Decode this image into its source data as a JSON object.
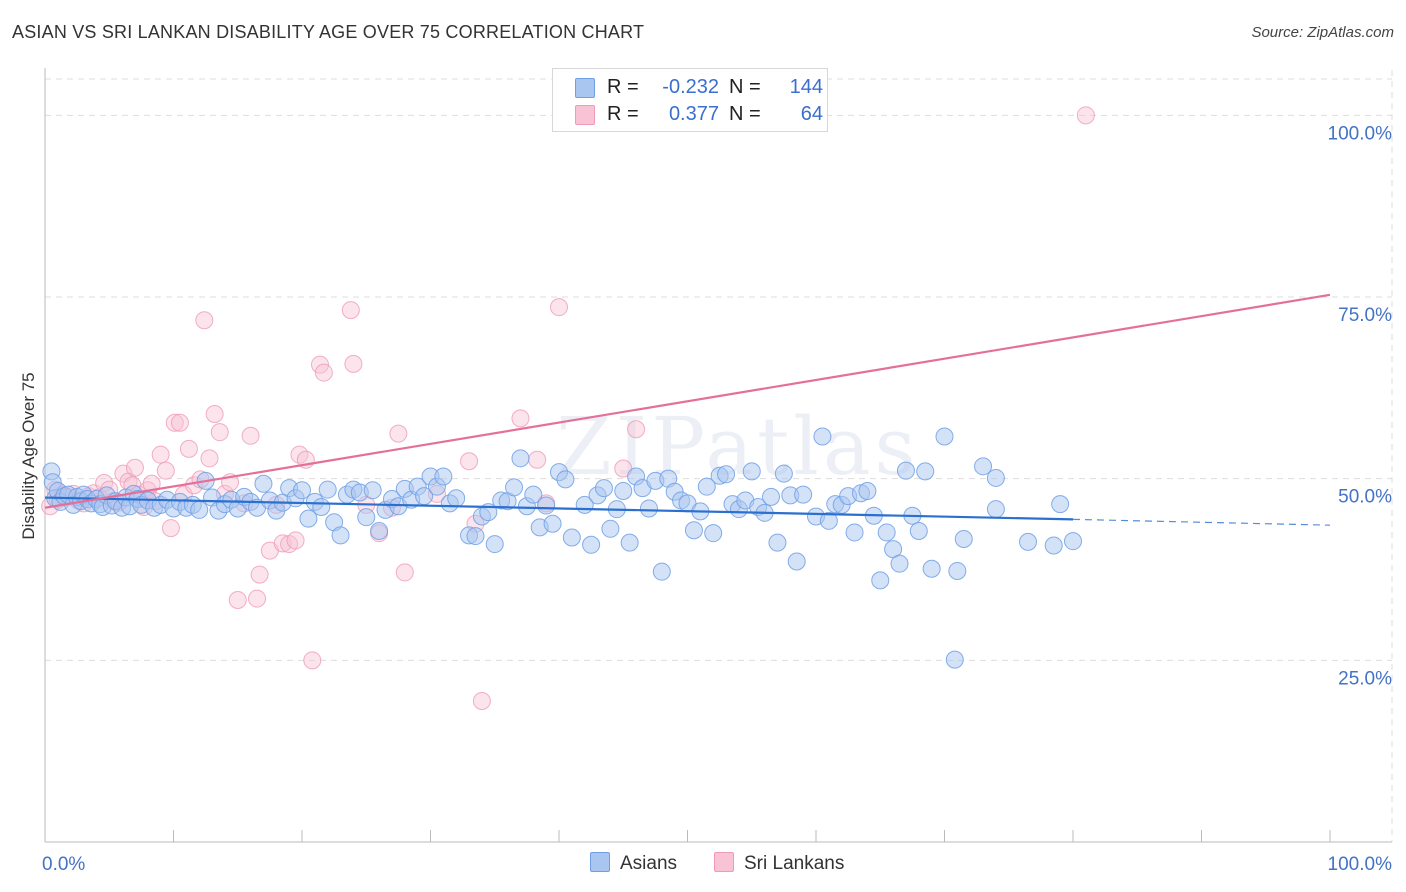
{
  "title": "ASIAN VS SRI LANKAN DISABILITY AGE OVER 75 CORRELATION CHART",
  "source": "Source: ZipAtlas.com",
  "watermark": "ZIPatlas",
  "colors": {
    "asians": "#6fa0e6",
    "asians_fill": "#a9c6f0",
    "asians_line": "#2b6fcf",
    "srilankans": "#f09ab8",
    "srilankans_fill": "#f7c3d5",
    "srilankans_line": "#e4709a",
    "grid": "#dddddd",
    "tick": "#4472c4"
  },
  "legend": {
    "rows": [
      {
        "label": "R =",
        "r": "-0.232",
        "n_label": "N =",
        "n": "144",
        "series": "asians"
      },
      {
        "label": "R =",
        "r": "0.377",
        "n_label": "N =",
        "n": "64",
        "series": "srilankans"
      }
    ]
  },
  "bottom_legend": [
    {
      "label": "Asians",
      "series": "asians"
    },
    {
      "label": "Sri Lankans",
      "series": "srilankans"
    }
  ],
  "chart_data": {
    "type": "scatter",
    "title": "ASIAN VS SRI LANKAN DISABILITY AGE OVER 75 CORRELATION CHART",
    "xlabel": "",
    "ylabel": "Disability Age Over 75",
    "xlim": [
      0,
      100
    ],
    "ylim": [
      0,
      105
    ],
    "x_ticks": [
      "0.0%",
      "100.0%"
    ],
    "y_ticks": [
      {
        "value": 25,
        "label": "25.0%"
      },
      {
        "value": 50,
        "label": "50.0%"
      },
      {
        "value": 75,
        "label": "75.0%"
      },
      {
        "value": 100,
        "label": "100.0%"
      }
    ],
    "grid": "horizontal dashed",
    "legend_position": "top-center",
    "series": [
      {
        "name": "Asians",
        "r": -0.232,
        "n": 144,
        "trend": {
          "x": [
            0,
            80,
            100
          ],
          "y": [
            47.4,
            44.4,
            43.6
          ],
          "solid_until": 80
        },
        "points": [
          [
            0.5,
            51
          ],
          [
            0.6,
            49.5
          ],
          [
            0.8,
            47.3
          ],
          [
            1.0,
            48.3
          ],
          [
            1.2,
            46.8
          ],
          [
            1.5,
            47.6
          ],
          [
            1.8,
            47.8
          ],
          [
            2.2,
            46.4
          ],
          [
            2.5,
            47.5
          ],
          [
            2.8,
            46.9
          ],
          [
            3.0,
            47.8
          ],
          [
            3.3,
            47.2
          ],
          [
            3.6,
            46.6
          ],
          [
            4.0,
            47.2
          ],
          [
            4.3,
            46.5
          ],
          [
            4.5,
            46.1
          ],
          [
            4.8,
            47.7
          ],
          [
            5.2,
            46.3
          ],
          [
            5.5,
            46.9
          ],
          [
            6.0,
            46.0
          ],
          [
            6.3,
            47.4
          ],
          [
            6.6,
            46.2
          ],
          [
            6.9,
            47.9
          ],
          [
            7.2,
            47.2
          ],
          [
            7.5,
            46.4
          ],
          [
            8.0,
            47.0
          ],
          [
            8.5,
            46.0
          ],
          [
            9.0,
            46.4
          ],
          [
            9.5,
            47.1
          ],
          [
            10.0,
            45.9
          ],
          [
            10.5,
            46.8
          ],
          [
            11.0,
            46.0
          ],
          [
            11.5,
            46.4
          ],
          [
            12.0,
            45.7
          ],
          [
            12.5,
            49.7
          ],
          [
            13.0,
            47.4
          ],
          [
            13.5,
            45.6
          ],
          [
            14.0,
            46.5
          ],
          [
            14.5,
            47.1
          ],
          [
            15.0,
            45.9
          ],
          [
            15.5,
            47.5
          ],
          [
            16.0,
            46.8
          ],
          [
            16.5,
            46.0
          ],
          [
            17.0,
            49.3
          ],
          [
            17.5,
            47.0
          ],
          [
            18.0,
            45.6
          ],
          [
            18.5,
            46.7
          ],
          [
            19.0,
            48.7
          ],
          [
            19.5,
            47.3
          ],
          [
            20.0,
            48.4
          ],
          [
            20.5,
            44.5
          ],
          [
            21.0,
            46.8
          ],
          [
            21.5,
            46.1
          ],
          [
            22.0,
            48.5
          ],
          [
            22.5,
            44.0
          ],
          [
            23.0,
            42.2
          ],
          [
            23.5,
            47.8
          ],
          [
            24.0,
            48.5
          ],
          [
            24.5,
            48.1
          ],
          [
            25.0,
            44.7
          ],
          [
            25.5,
            48.4
          ],
          [
            26.0,
            42.8
          ],
          [
            26.5,
            45.7
          ],
          [
            27.0,
            47.2
          ],
          [
            27.5,
            46.2
          ],
          [
            28.0,
            48.6
          ],
          [
            28.5,
            47.1
          ],
          [
            29.0,
            48.9
          ],
          [
            29.5,
            47.6
          ],
          [
            30.0,
            50.3
          ],
          [
            30.5,
            48.9
          ],
          [
            31.0,
            50.3
          ],
          [
            31.5,
            46.6
          ],
          [
            32.0,
            47.3
          ],
          [
            33.0,
            42.2
          ],
          [
            33.5,
            42.1
          ],
          [
            34.0,
            44.8
          ],
          [
            34.5,
            45.4
          ],
          [
            35.0,
            41.0
          ],
          [
            35.5,
            47.0
          ],
          [
            36.0,
            46.9
          ],
          [
            36.5,
            48.8
          ],
          [
            37.0,
            52.8
          ],
          [
            37.5,
            46.2
          ],
          [
            38.0,
            47.8
          ],
          [
            38.5,
            43.3
          ],
          [
            39.0,
            46.3
          ],
          [
            39.5,
            43.8
          ],
          [
            40.0,
            50.9
          ],
          [
            40.5,
            49.9
          ],
          [
            41.0,
            41.9
          ],
          [
            42.0,
            46.4
          ],
          [
            42.5,
            40.9
          ],
          [
            43.0,
            47.7
          ],
          [
            43.5,
            48.7
          ],
          [
            44.0,
            43.1
          ],
          [
            44.5,
            45.8
          ],
          [
            45.0,
            48.3
          ],
          [
            45.5,
            41.2
          ],
          [
            46.0,
            50.3
          ],
          [
            46.5,
            48.7
          ],
          [
            47.0,
            45.9
          ],
          [
            47.5,
            49.7
          ],
          [
            48.0,
            37.2
          ],
          [
            48.5,
            50.0
          ],
          [
            49.0,
            48.2
          ],
          [
            49.5,
            47.0
          ],
          [
            50.0,
            46.6
          ],
          [
            50.5,
            42.9
          ],
          [
            51.0,
            45.5
          ],
          [
            51.5,
            48.9
          ],
          [
            52.0,
            42.5
          ],
          [
            52.5,
            50.4
          ],
          [
            53.0,
            50.6
          ],
          [
            53.5,
            46.5
          ],
          [
            54.0,
            45.8
          ],
          [
            54.5,
            47.0
          ],
          [
            55.0,
            51.0
          ],
          [
            55.5,
            46.1
          ],
          [
            56.0,
            45.3
          ],
          [
            56.5,
            47.5
          ],
          [
            57.0,
            41.2
          ],
          [
            57.5,
            50.7
          ],
          [
            58.0,
            47.7
          ],
          [
            58.5,
            38.6
          ],
          [
            59.0,
            47.8
          ],
          [
            60.0,
            44.8
          ],
          [
            60.5,
            55.8
          ],
          [
            61.0,
            44.2
          ],
          [
            61.5,
            46.5
          ],
          [
            62.0,
            46.4
          ],
          [
            62.5,
            47.6
          ],
          [
            63.0,
            42.6
          ],
          [
            63.5,
            48.0
          ],
          [
            64.0,
            48.3
          ],
          [
            64.5,
            44.9
          ],
          [
            65.0,
            36.0
          ],
          [
            65.5,
            42.6
          ],
          [
            66.0,
            40.3
          ],
          [
            66.5,
            38.3
          ],
          [
            67.0,
            51.1
          ],
          [
            67.5,
            44.9
          ],
          [
            68.0,
            42.8
          ],
          [
            68.5,
            51.0
          ],
          [
            69.0,
            37.6
          ],
          [
            70.0,
            55.8
          ],
          [
            71.0,
            37.3
          ],
          [
            71.5,
            41.7
          ],
          [
            70.8,
            25.1
          ],
          [
            73.0,
            51.7
          ],
          [
            74.0,
            50.1
          ],
          [
            74.0,
            45.8
          ],
          [
            76.5,
            41.3
          ],
          [
            78.5,
            40.8
          ],
          [
            79.0,
            46.5
          ],
          [
            80.0,
            41.4
          ]
        ]
      },
      {
        "name": "Sri Lankans",
        "r": 0.377,
        "n": 64,
        "trend": {
          "x": [
            0,
            100
          ],
          "y": [
            46.0,
            75.3
          ],
          "solid_until": 100
        },
        "points": [
          [
            0.4,
            46.2
          ],
          [
            0.8,
            48.5
          ],
          [
            1.0,
            47.1
          ],
          [
            1.4,
            47.8
          ],
          [
            1.8,
            47.5
          ],
          [
            2.2,
            47.9
          ],
          [
            2.6,
            47.0
          ],
          [
            3.0,
            46.6
          ],
          [
            3.4,
            47.6
          ],
          [
            3.8,
            48.0
          ],
          [
            4.2,
            47.4
          ],
          [
            4.6,
            49.4
          ],
          [
            5.0,
            48.5
          ],
          [
            5.3,
            46.9
          ],
          [
            5.7,
            46.7
          ],
          [
            6.1,
            50.7
          ],
          [
            6.5,
            49.6
          ],
          [
            6.8,
            49.1
          ],
          [
            7.0,
            51.5
          ],
          [
            7.3,
            47.8
          ],
          [
            7.7,
            46.1
          ],
          [
            8.0,
            48.4
          ],
          [
            8.3,
            49.3
          ],
          [
            8.6,
            46.9
          ],
          [
            9.0,
            53.3
          ],
          [
            9.4,
            51.1
          ],
          [
            9.8,
            43.2
          ],
          [
            10.1,
            57.7
          ],
          [
            10.5,
            57.7
          ],
          [
            10.8,
            47.8
          ],
          [
            11.2,
            54.1
          ],
          [
            11.6,
            49.1
          ],
          [
            12.1,
            49.9
          ],
          [
            12.4,
            71.8
          ],
          [
            12.8,
            52.8
          ],
          [
            13.2,
            58.9
          ],
          [
            13.6,
            56.4
          ],
          [
            14.0,
            47.9
          ],
          [
            14.4,
            49.5
          ],
          [
            15.0,
            33.3
          ],
          [
            15.5,
            46.6
          ],
          [
            16.0,
            55.9
          ],
          [
            16.5,
            33.5
          ],
          [
            16.7,
            36.8
          ],
          [
            17.5,
            40.1
          ],
          [
            18.0,
            46.4
          ],
          [
            18.5,
            41.1
          ],
          [
            19.0,
            41.0
          ],
          [
            19.5,
            41.5
          ],
          [
            19.8,
            53.3
          ],
          [
            20.3,
            52.6
          ],
          [
            20.8,
            25.0
          ],
          [
            21.4,
            65.7
          ],
          [
            21.7,
            64.6
          ],
          [
            23.8,
            73.2
          ],
          [
            24.0,
            65.8
          ],
          [
            25.0,
            46.4
          ],
          [
            26.0,
            42.5
          ],
          [
            27.0,
            46.0
          ],
          [
            27.5,
            56.2
          ],
          [
            28.0,
            37.1
          ],
          [
            30.5,
            47.9
          ],
          [
            33.0,
            52.4
          ],
          [
            33.5,
            43.8
          ],
          [
            34.0,
            19.4
          ],
          [
            37.0,
            58.3
          ],
          [
            38.3,
            52.6
          ],
          [
            39.0,
            46.6
          ],
          [
            40.0,
            73.6
          ],
          [
            45.0,
            51.4
          ],
          [
            46.0,
            56.8
          ],
          [
            81.0,
            100.0
          ]
        ]
      }
    ]
  }
}
